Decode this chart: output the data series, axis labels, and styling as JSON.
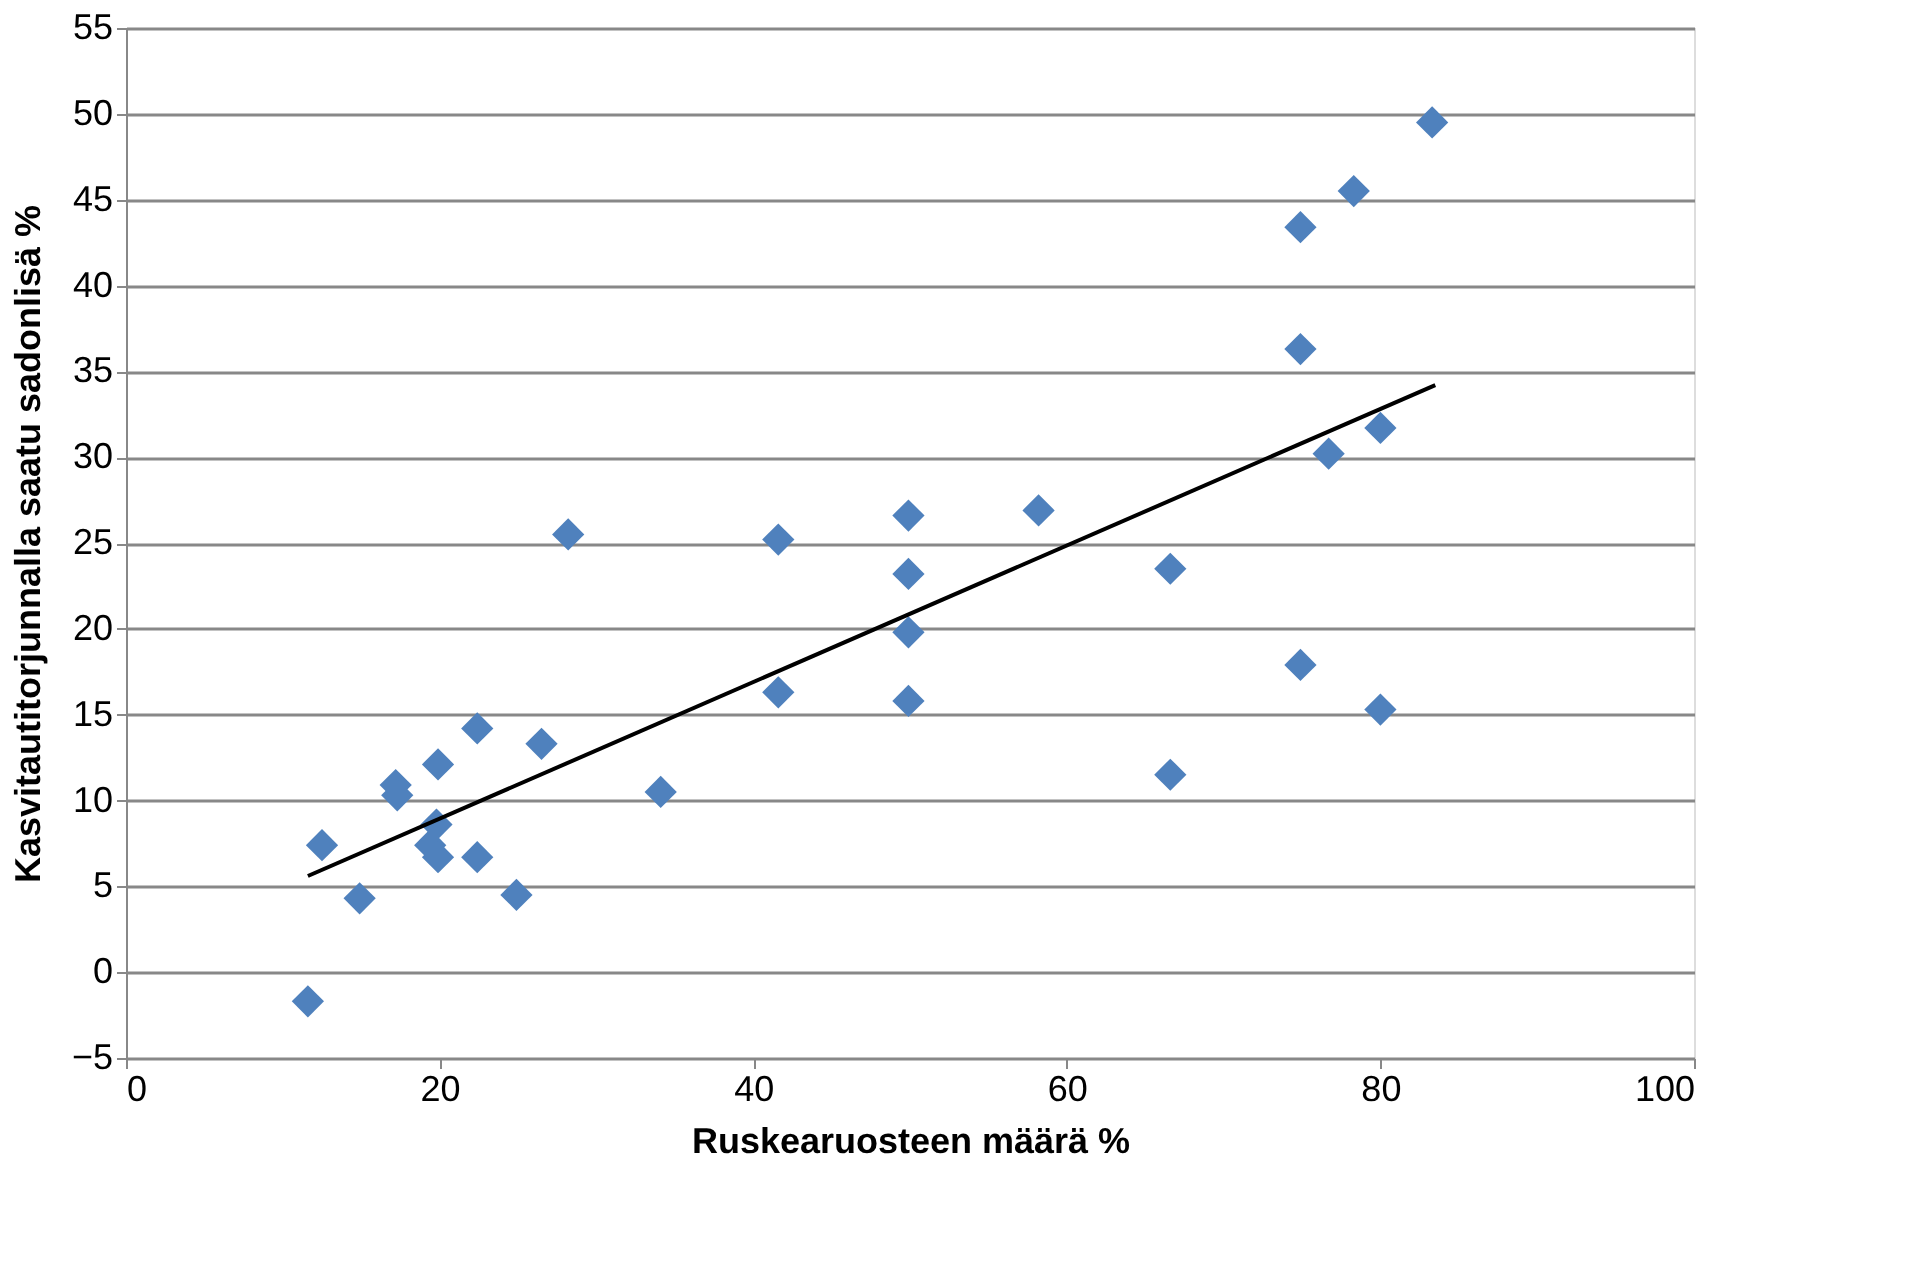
{
  "chart_data": {
    "type": "scatter",
    "xlabel": "Ruskearuosteen määrä %",
    "ylabel": "Kasvitautitorjunnalla saatu sadonlisä %",
    "xlim": [
      0,
      100
    ],
    "xticks": [
      0,
      20,
      40,
      60,
      80,
      100
    ],
    "ylim": [
      -5,
      55
    ],
    "yticks": [
      -5,
      0,
      5,
      10,
      15,
      20,
      25,
      30,
      35,
      40,
      45,
      50,
      55
    ],
    "grid": "y",
    "marker": "diamond",
    "series": [
      {
        "color": "#4f81bd",
        "x": [
          11.6,
          12.5,
          14.9,
          17.2,
          17.3,
          19.9,
          19.8,
          19.4,
          19.9,
          22.4,
          22.4,
          24.9,
          26.5,
          28.2,
          34.1,
          41.6,
          41.6,
          49.9,
          49.9,
          49.9,
          49.9,
          58.2,
          66.6,
          66.6,
          74.9,
          74.9,
          74.9,
          76.7,
          78.3,
          80.0,
          80.0,
          83.3
        ],
        "values": [
          -1.7,
          7.4,
          4.3,
          10.9,
          10.3,
          12.1,
          8.6,
          7.4,
          6.7,
          14.2,
          6.7,
          4.5,
          13.3,
          25.5,
          10.5,
          25.2,
          16.3,
          26.6,
          23.2,
          19.8,
          15.8,
          26.9,
          23.5,
          11.5,
          43.4,
          36.3,
          17.9,
          30.2,
          45.5,
          31.7,
          15.3,
          49.5
        ]
      },
      {
        "type": "line",
        "color": "#000000",
        "marker": "none",
        "x": [
          11.6,
          83.5
        ],
        "values": [
          5.6,
          34.2
        ]
      }
    ]
  }
}
